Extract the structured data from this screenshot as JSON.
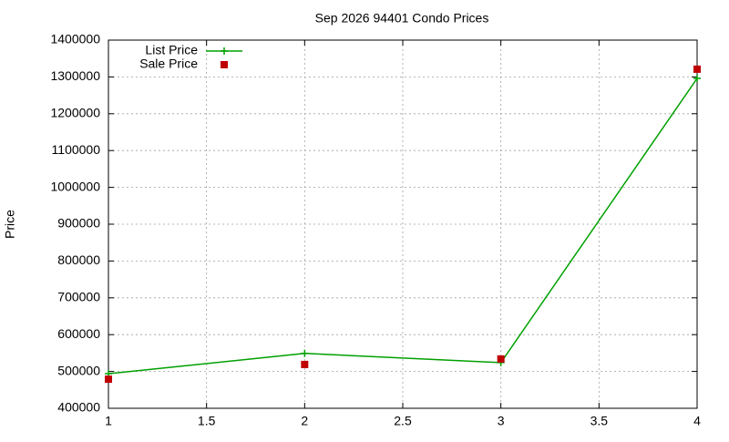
{
  "chart_data": {
    "type": "line",
    "title": "Sep 2026 94401 Condo Prices",
    "y_label": "Price",
    "x": [
      1,
      2,
      3,
      4
    ],
    "series": [
      {
        "name": "List Price",
        "color": "#00a000",
        "style": "linespoints",
        "values": [
          494000,
          549000,
          524000,
          1296000
        ]
      },
      {
        "name": "Sale Price",
        "color": "#c00000",
        "style": "points",
        "values": [
          479000,
          519000,
          534000,
          1321000
        ]
      }
    ],
    "xlim": [
      1,
      4
    ],
    "xticks": [
      1,
      1.5,
      2,
      2.5,
      3,
      3.5,
      4
    ],
    "ylim": [
      400000,
      1400000
    ],
    "yticks": [
      400000,
      500000,
      600000,
      700000,
      800000,
      900000,
      1000000,
      1100000,
      1200000,
      1300000,
      1400000
    ],
    "grid": true,
    "legend": "top-left"
  }
}
